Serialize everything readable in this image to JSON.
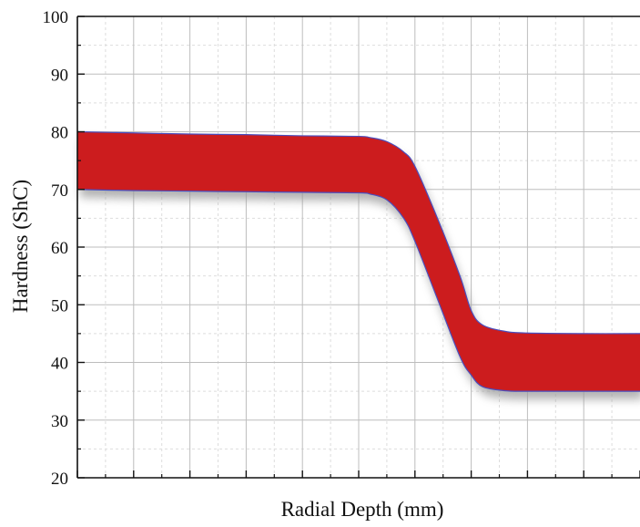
{
  "chart_data": {
    "type": "area",
    "title": "",
    "xlabel": "Radial Depth (mm)",
    "ylabel": "Hardness (ShC)",
    "ylim": [
      20,
      100
    ],
    "yticks": [
      20,
      30,
      40,
      50,
      60,
      70,
      80,
      90,
      100
    ],
    "xlim": [
      0,
      10
    ],
    "x_tick_labels_shown": false,
    "grid": true,
    "legend": "none",
    "series": [
      {
        "upper": {
          "x": [
            0,
            1,
            2,
            3,
            4,
            5,
            5.2,
            5.5,
            5.8,
            6.0,
            6.4,
            6.8,
            7.0,
            7.2,
            7.6,
            8.0,
            9.0,
            10
          ],
          "y": [
            80,
            79.8,
            79.6,
            79.5,
            79.3,
            79.2,
            79.0,
            78.3,
            76.5,
            74,
            65,
            55,
            49,
            46.5,
            45.4,
            45.1,
            45.0,
            45.0
          ]
        },
        "lower": {
          "x": [
            0,
            1,
            2,
            3,
            4,
            5,
            5.2,
            5.5,
            5.8,
            6.0,
            6.4,
            6.8,
            7.0,
            7.2,
            7.6,
            8.0,
            9.0,
            10
          ],
          "y": [
            70,
            69.8,
            69.7,
            69.6,
            69.5,
            69.4,
            69.2,
            68.2,
            65,
            61,
            51,
            41,
            37.8,
            35.8,
            35.1,
            35.0,
            35.0,
            35.0
          ]
        }
      }
    ],
    "colors": {
      "band_fill": "#cc1c1e",
      "band_edge": "#4a4dbd",
      "shadow": "#9a9a9a",
      "grid_major": "#bdbdbd",
      "grid_minor": "#dddddd",
      "axis": "#111111"
    }
  }
}
